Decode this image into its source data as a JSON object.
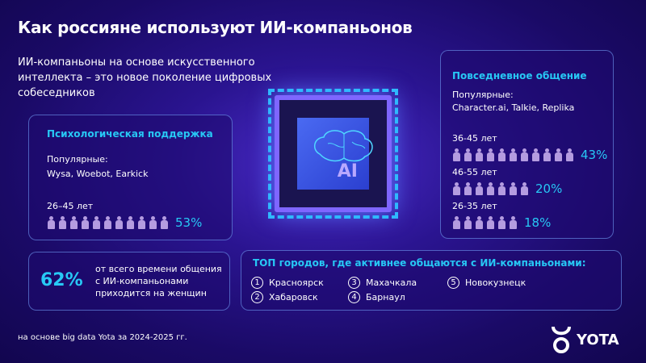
{
  "title": "Как россияне используют ИИ-компаньонов",
  "subtitle": "ИИ-компаньоны на основе искусственного интеллекта – это новое поколение цифровых собеседников",
  "chip_label": "AI",
  "psych": {
    "heading": "Психологическая поддержка",
    "popular_label": "Популярные:",
    "apps": "Wysa, Woebot, Earkick",
    "groups": [
      {
        "age": "26–45 лет",
        "percent": "53%",
        "icons": 11
      }
    ]
  },
  "daily": {
    "heading": "Повседневное общение",
    "popular_label": "Популярные:",
    "apps": "Character.ai, Talkie, Replika",
    "groups": [
      {
        "age": "36-45 лет",
        "percent": "43%",
        "icons": 11
      },
      {
        "age": "46-55 лет",
        "percent": "20%",
        "icons": 7
      },
      {
        "age": "26-35 лет",
        "percent": "18%",
        "icons": 6
      }
    ]
  },
  "women": {
    "value": "62%",
    "text": "от всего времени общения с ИИ-компаньонами приходится на женщин"
  },
  "cities": {
    "heading": "ТОП городов, где активнее общаются с ИИ-компаньонами:",
    "items": [
      {
        "n": "1",
        "name": "Красноярск"
      },
      {
        "n": "2",
        "name": "Хабаровск"
      },
      {
        "n": "3",
        "name": "Махачкала"
      },
      {
        "n": "4",
        "name": "Барнаул"
      },
      {
        "n": "5",
        "name": "Новокузнецк"
      }
    ]
  },
  "footnote": "на основе big data Yota за 2024-2025 гг.",
  "logo": "YOTA",
  "colors": {
    "accent": "#27c8f5",
    "background": "#1a0a66",
    "person": "#b49ce0"
  }
}
